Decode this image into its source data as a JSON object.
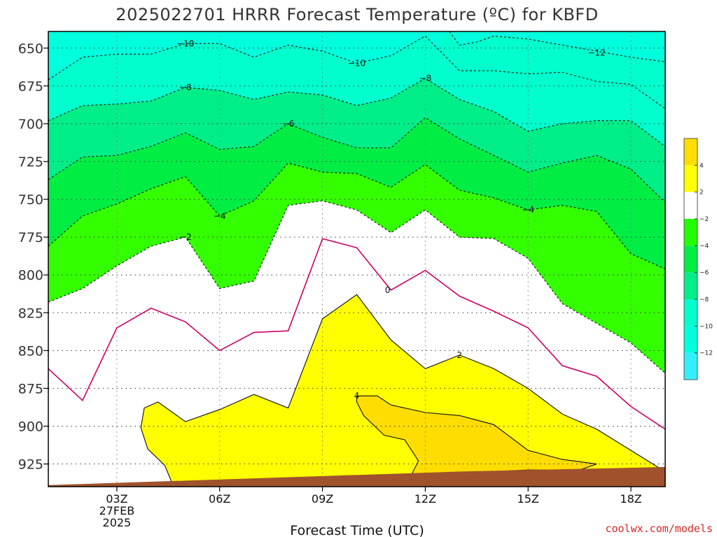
{
  "chart_data": {
    "type": "contour",
    "title": "2025022701 HRRR Forecast Temperature (ºC) for KBFD",
    "xlabel": "Forecast Time (UTC)",
    "credit": "coolwx.com/models",
    "x_ticks": [
      {
        "hour": 3,
        "lines": [
          "03Z",
          "27FEB",
          "2025"
        ]
      },
      {
        "hour": 6,
        "lines": [
          "06Z"
        ]
      },
      {
        "hour": 9,
        "lines": [
          "09Z"
        ]
      },
      {
        "hour": 12,
        "lines": [
          "12Z"
        ]
      },
      {
        "hour": 15,
        "lines": [
          "15Z"
        ]
      },
      {
        "hour": 18,
        "lines": [
          "18Z"
        ]
      }
    ],
    "y_ticks": [
      "650",
      "675",
      "700",
      "725",
      "750",
      "775",
      "800",
      "825",
      "850",
      "875",
      "900",
      "925"
    ],
    "y_tick_values": [
      650,
      675,
      700,
      725,
      750,
      775,
      800,
      825,
      850,
      875,
      900,
      925
    ],
    "xlim": [
      1,
      19
    ],
    "ylim": [
      639,
      940
    ],
    "grid": true,
    "colorbar": {
      "labels": [
        "4",
        "2",
        "−2",
        "−4",
        "−6",
        "−8",
        "−10",
        "−12"
      ],
      "bands": [
        "#ffdd00",
        "#ffff00",
        "#ffffff",
        "#22ff00",
        "#00ee44",
        "#00ee88",
        "#00ffcc",
        "#00ffdd",
        "#33eeff"
      ]
    },
    "fills": {
      "top": "#00ffdd",
      "m12": "#00ffff",
      "m10": "#00ffcc",
      "m8": "#00ee88",
      "m6": "#00ee44",
      "m4": "#33ff00",
      "m2": "#ffffff",
      "p2": "#ffff00",
      "p4": "#ffdd00",
      "ground": "#a0522d"
    },
    "contours": [
      {
        "level": "-12",
        "label": "−12",
        "label_at": [
          17.0,
          653
        ],
        "points": [
          [
            12.7,
            639
          ],
          [
            13.0,
            648
          ],
          [
            13.5,
            646
          ],
          [
            14.0,
            642
          ],
          [
            15.0,
            644
          ],
          [
            16.0,
            648
          ],
          [
            17.0,
            652
          ],
          [
            18.0,
            656
          ],
          [
            19.0,
            659
          ]
        ]
      },
      {
        "level": "-10",
        "label": "−10",
        "label_at": [
          5.0,
          647
        ],
        "label2": "−10",
        "label2_at": [
          10.0,
          660
        ],
        "points": [
          [
            1.0,
            671
          ],
          [
            2.0,
            656
          ],
          [
            3.0,
            654
          ],
          [
            4.0,
            654
          ],
          [
            5.0,
            647
          ],
          [
            6.0,
            647
          ],
          [
            7.0,
            656
          ],
          [
            8.0,
            648
          ],
          [
            9.0,
            652
          ],
          [
            10.0,
            660
          ],
          [
            11.0,
            655
          ],
          [
            12.0,
            642
          ],
          [
            13.0,
            665
          ],
          [
            14.0,
            665
          ],
          [
            15.0,
            667
          ],
          [
            16.0,
            666
          ],
          [
            17.0,
            672
          ],
          [
            18.0,
            674
          ],
          [
            19.0,
            690
          ]
        ]
      },
      {
        "level": "-8",
        "label": "−8",
        "label_at": [
          5.0,
          676
        ],
        "label2": "−8",
        "label2_at": [
          12.0,
          670
        ],
        "points": [
          [
            1.0,
            698
          ],
          [
            2.0,
            688
          ],
          [
            3.0,
            687
          ],
          [
            4.0,
            685
          ],
          [
            5.0,
            676
          ],
          [
            6.0,
            678
          ],
          [
            7.0,
            684
          ],
          [
            8.0,
            679
          ],
          [
            9.0,
            681
          ],
          [
            10.0,
            688
          ],
          [
            11.0,
            683
          ],
          [
            12.0,
            670
          ],
          [
            13.0,
            684
          ],
          [
            14.0,
            692
          ],
          [
            15.0,
            705
          ],
          [
            16.0,
            700
          ],
          [
            17.0,
            698
          ],
          [
            18.0,
            698
          ],
          [
            19.0,
            715
          ]
        ]
      },
      {
        "level": "-6",
        "label": "−6",
        "label_at": [
          8.0,
          700
        ],
        "points": [
          [
            1.0,
            737
          ],
          [
            2.0,
            722
          ],
          [
            3.0,
            721
          ],
          [
            4.0,
            715
          ],
          [
            5.0,
            706
          ],
          [
            6.0,
            717
          ],
          [
            7.0,
            715
          ],
          [
            8.0,
            700
          ],
          [
            9.0,
            709
          ],
          [
            10.0,
            716
          ],
          [
            11.0,
            716
          ],
          [
            12.0,
            696
          ],
          [
            13.0,
            710
          ],
          [
            14.0,
            721
          ],
          [
            15.0,
            732
          ],
          [
            16.0,
            726
          ],
          [
            17.0,
            721
          ],
          [
            18.0,
            730
          ],
          [
            19.0,
            752
          ]
        ]
      },
      {
        "level": "-4",
        "label": "−4",
        "label_at": [
          6.0,
          761
        ],
        "label2": "−4",
        "label2_at": [
          15.0,
          757
        ],
        "points": [
          [
            1.0,
            781
          ],
          [
            2.0,
            761
          ],
          [
            3.0,
            753
          ],
          [
            4.0,
            743
          ],
          [
            5.0,
            735
          ],
          [
            6.0,
            761
          ],
          [
            7.0,
            751
          ],
          [
            8.0,
            726
          ],
          [
            9.0,
            732
          ],
          [
            10.0,
            733
          ],
          [
            11.0,
            742
          ],
          [
            12.0,
            727
          ],
          [
            13.0,
            744
          ],
          [
            14.0,
            749
          ],
          [
            15.0,
            757
          ],
          [
            16.0,
            754
          ],
          [
            17.0,
            758
          ],
          [
            18.0,
            786
          ],
          [
            19.0,
            796
          ]
        ]
      },
      {
        "level": "-2",
        "label": "−2",
        "label_at": [
          5.0,
          775
        ],
        "points": [
          [
            1.0,
            818
          ],
          [
            2.0,
            809
          ],
          [
            3.0,
            794
          ],
          [
            4.0,
            781
          ],
          [
            5.0,
            775
          ],
          [
            6.0,
            809
          ],
          [
            7.0,
            804
          ],
          [
            8.0,
            754
          ],
          [
            9.0,
            751
          ],
          [
            10.0,
            757
          ],
          [
            11.0,
            772
          ],
          [
            12.0,
            757
          ],
          [
            13.0,
            775
          ],
          [
            14.0,
            776
          ],
          [
            15.0,
            789
          ],
          [
            16.0,
            819
          ],
          [
            17.0,
            832
          ],
          [
            18.0,
            845
          ],
          [
            19.0,
            865
          ]
        ]
      },
      {
        "level": "0",
        "label": "0",
        "label_at": [
          10.9,
          810
        ],
        "points": [
          [
            1.0,
            862
          ],
          [
            2.0,
            883
          ],
          [
            3.0,
            835
          ],
          [
            4.0,
            822
          ],
          [
            5.0,
            831
          ],
          [
            6.0,
            850
          ],
          [
            7.0,
            838
          ],
          [
            8.0,
            837
          ],
          [
            9.0,
            776
          ],
          [
            10.0,
            782
          ],
          [
            11.0,
            810
          ],
          [
            12.0,
            797
          ],
          [
            13.0,
            814
          ],
          [
            14.0,
            824
          ],
          [
            15.0,
            835
          ],
          [
            16.0,
            860
          ],
          [
            17.0,
            867
          ],
          [
            18.0,
            887
          ],
          [
            19.0,
            902
          ]
        ]
      },
      {
        "level": "2",
        "label": "2",
        "label_at": [
          13.0,
          853
        ],
        "points": [
          [
            4.6,
            937
          ],
          [
            4.4,
            926
          ],
          [
            3.9,
            915
          ],
          [
            3.7,
            901
          ],
          [
            3.8,
            888
          ],
          [
            4.2,
            884
          ],
          [
            5.0,
            897
          ],
          [
            6.0,
            889
          ],
          [
            7.0,
            879
          ],
          [
            8.0,
            888
          ],
          [
            9.0,
            829
          ],
          [
            10.0,
            813
          ],
          [
            11.0,
            843
          ],
          [
            12.0,
            862
          ],
          [
            13.0,
            853
          ],
          [
            14.0,
            862
          ],
          [
            15.0,
            875
          ],
          [
            16.0,
            892
          ],
          [
            17.0,
            902
          ],
          [
            18.0,
            916
          ],
          [
            19.0,
            930
          ]
        ]
      },
      {
        "level": "4",
        "label": "4",
        "label_at": [
          10.0,
          880
        ],
        "points": [
          [
            10.0,
            880
          ],
          [
            10.6,
            880
          ],
          [
            11.0,
            886
          ],
          [
            12.0,
            891
          ],
          [
            13.0,
            893
          ],
          [
            14.0,
            899
          ],
          [
            15.0,
            916
          ],
          [
            16.0,
            922
          ],
          [
            17.0,
            925
          ],
          [
            16.5,
            929
          ],
          [
            15.0,
            929
          ],
          [
            14.0,
            930
          ],
          [
            13.0,
            931
          ],
          [
            12.0,
            932
          ],
          [
            11.6,
            932
          ],
          [
            11.8,
            923
          ],
          [
            11.4,
            909
          ],
          [
            10.8,
            906
          ],
          [
            10.2,
            893
          ],
          [
            10.0,
            884
          ]
        ]
      }
    ],
    "ground": [
      [
        1.0,
        939
      ],
      [
        9.0,
        933
      ],
      [
        13.0,
        930
      ],
      [
        19.0,
        927
      ]
    ]
  }
}
